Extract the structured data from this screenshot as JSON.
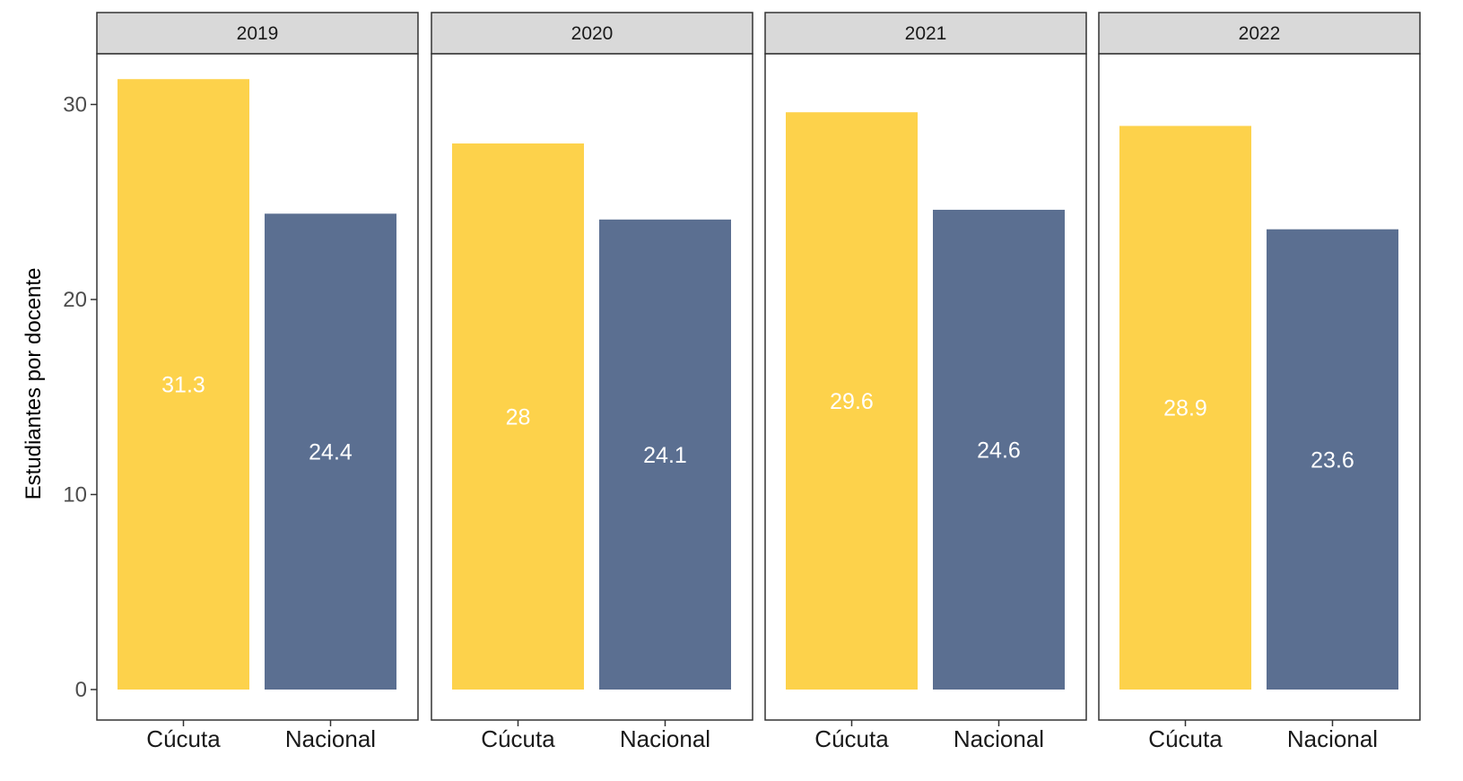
{
  "chart_data": {
    "type": "bar",
    "facet_by": "year",
    "categories": [
      "Cúcuta",
      "Nacional"
    ],
    "panels": [
      {
        "label": "2019",
        "values": [
          31.3,
          24.4
        ],
        "value_labels": [
          "31.3",
          "24.4"
        ]
      },
      {
        "label": "2020",
        "values": [
          28.0,
          24.1
        ],
        "value_labels": [
          "28",
          "24.1"
        ]
      },
      {
        "label": "2021",
        "values": [
          29.6,
          24.6
        ],
        "value_labels": [
          "29.6",
          "24.6"
        ]
      },
      {
        "label": "2022",
        "values": [
          28.9,
          23.6
        ],
        "value_labels": [
          "28.9",
          "23.6"
        ]
      }
    ],
    "ylabel": "Estudiantes por docente",
    "xlabel": "",
    "ylim": [
      0,
      33
    ],
    "yticks": [
      0,
      10,
      20,
      30
    ],
    "ytick_labels": [
      "0",
      "10",
      "20",
      "30"
    ],
    "grid": false,
    "legend": "none",
    "colors": {
      "Cúcuta": "#fdd24b",
      "Nacional": "#5b6f91"
    },
    "strip_background": "#d9d9d9",
    "label_color": "#ffffff"
  }
}
